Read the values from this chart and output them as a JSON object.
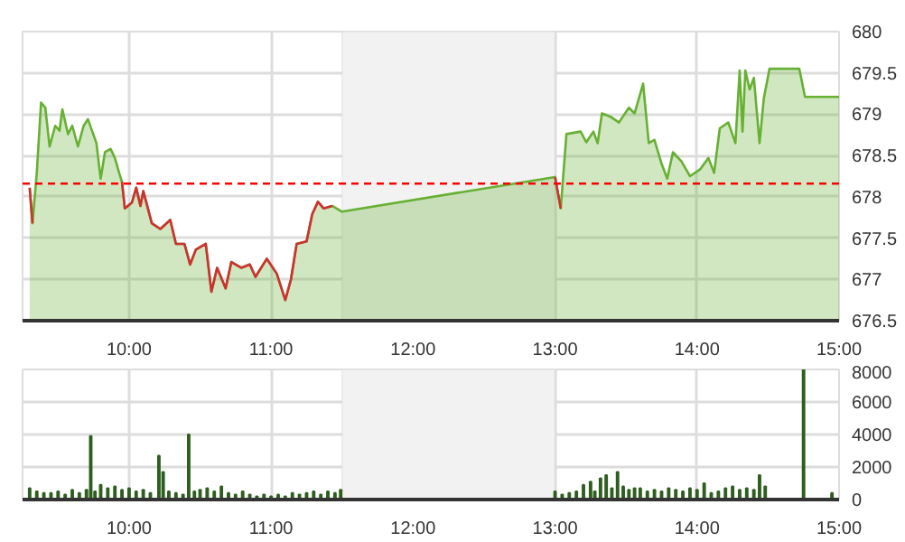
{
  "chart_data": [
    {
      "type": "area",
      "xlim": [
        9.25,
        15
      ],
      "ylim": [
        676.5,
        680
      ],
      "xticks": [
        {
          "value": 10,
          "label": "10:00"
        },
        {
          "value": 11,
          "label": "11:00"
        },
        {
          "value": 12,
          "label": "12:00"
        },
        {
          "value": 13,
          "label": "13:00"
        },
        {
          "value": 14,
          "label": "14:00"
        },
        {
          "value": 15,
          "label": "15:00"
        }
      ],
      "yticks": [
        676.5,
        677,
        677.5,
        678,
        678.5,
        679,
        679.5,
        680
      ],
      "grid": true,
      "x": [
        9.3,
        9.32,
        9.35,
        9.38,
        9.41,
        9.44,
        9.48,
        9.51,
        9.53,
        9.57,
        9.6,
        9.64,
        9.68,
        9.71,
        9.77,
        9.8,
        9.83,
        9.87,
        9.9,
        9.93,
        9.95,
        9.97,
        10.02,
        10.05,
        10.08,
        10.1,
        10.16,
        10.22,
        10.29,
        10.33,
        10.39,
        10.43,
        10.47,
        10.54,
        10.58,
        10.62,
        10.68,
        10.72,
        10.79,
        10.85,
        10.89,
        10.97,
        11.04,
        11.1,
        11.14,
        11.18,
        11.25,
        11.29,
        11.33,
        11.37,
        11.43,
        11.5,
        13.0,
        13.04,
        13.08,
        13.18,
        13.22,
        13.27,
        13.3,
        13.33,
        13.39,
        13.45,
        13.52,
        13.56,
        13.62,
        13.66,
        13.7,
        13.75,
        13.79,
        13.83,
        13.89,
        13.95,
        14.02,
        14.08,
        14.12,
        14.16,
        14.22,
        14.27,
        14.3,
        14.32,
        14.34,
        14.37,
        14.4,
        14.44,
        14.47,
        14.51,
        14.72,
        14.76,
        15.0
      ],
      "series": [
        {
          "type": "area",
          "color": "#66b032",
          "values": [
            678.11,
            677.68,
            678.29,
            679.14,
            679.08,
            678.61,
            678.86,
            678.8,
            679.06,
            678.76,
            678.86,
            678.61,
            678.86,
            678.94,
            678.65,
            678.22,
            678.54,
            678.58,
            678.47,
            678.29,
            678.18,
            677.86,
            677.93,
            678.11,
            677.89,
            678.07,
            677.68,
            677.61,
            677.72,
            677.43,
            677.43,
            677.18,
            677.36,
            677.43,
            676.85,
            677.14,
            676.89,
            677.21,
            677.14,
            677.18,
            677.03,
            677.25,
            677.07,
            676.75,
            677.0,
            677.43,
            677.46,
            677.79,
            677.94,
            677.86,
            677.89,
            677.82,
            678.24,
            677.86,
            678.76,
            678.79,
            678.66,
            678.79,
            678.65,
            679.01,
            678.97,
            678.9,
            679.08,
            679.01,
            679.37,
            678.65,
            678.69,
            678.4,
            678.22,
            678.54,
            678.43,
            678.25,
            678.33,
            678.47,
            678.29,
            678.83,
            678.9,
            678.65,
            679.53,
            678.79,
            679.53,
            679.3,
            679.44,
            678.65,
            679.19,
            679.55,
            679.55,
            679.21,
            679.21
          ]
        },
        {
          "type": "line",
          "color": "#d03030",
          "values": [
            678.11,
            677.68,
            null,
            null,
            null,
            null,
            null,
            null,
            null,
            null,
            null,
            null,
            null,
            null,
            null,
            null,
            null,
            null,
            null,
            null,
            678.18,
            677.86,
            677.93,
            678.11,
            677.89,
            678.07,
            677.68,
            677.61,
            677.72,
            677.43,
            677.43,
            677.18,
            677.36,
            677.43,
            676.85,
            677.14,
            676.89,
            677.21,
            677.14,
            677.18,
            677.03,
            677.25,
            677.07,
            676.75,
            677.0,
            677.43,
            677.46,
            677.79,
            677.94,
            677.86,
            677.89,
            null,
            678.24,
            677.86,
            null,
            null,
            null,
            null,
            null,
            null,
            null,
            null,
            null,
            null,
            null,
            null,
            null,
            null,
            null,
            null,
            null,
            null,
            null,
            null,
            null,
            null,
            null,
            null,
            null,
            null,
            null,
            null,
            null,
            null,
            null,
            null,
            null,
            null,
            null
          ]
        }
      ],
      "bands": [
        {
          "axis": "x",
          "from": 11.5,
          "to": 13,
          "color": "#f2f2f2"
        }
      ],
      "ref_lines": [
        {
          "axis": "y",
          "value": 678.16,
          "color": "#ff0000",
          "line_style": "dashed"
        }
      ]
    },
    {
      "type": "bar",
      "xlim": [
        9.25,
        15
      ],
      "ylim": [
        0,
        8000
      ],
      "xticks": [
        {
          "value": 10,
          "label": "10:00"
        },
        {
          "value": 11,
          "label": "11:00"
        },
        {
          "value": 12,
          "label": "12:00"
        },
        {
          "value": 13,
          "label": "13:00"
        },
        {
          "value": 14,
          "label": "14:00"
        },
        {
          "value": 15,
          "label": "15:00"
        }
      ],
      "yticks": [
        0,
        2000,
        4000,
        6000,
        8000
      ],
      "grid": true,
      "x": [
        9.3,
        9.35,
        9.4,
        9.45,
        9.5,
        9.55,
        9.6,
        9.65,
        9.7,
        9.73,
        9.76,
        9.8,
        9.85,
        9.9,
        9.95,
        10.0,
        10.05,
        10.1,
        10.15,
        10.21,
        10.24,
        10.28,
        10.33,
        10.38,
        10.42,
        10.46,
        10.5,
        10.55,
        10.6,
        10.65,
        10.7,
        10.75,
        10.8,
        10.85,
        10.9,
        10.95,
        11.0,
        11.05,
        11.1,
        11.15,
        11.2,
        11.25,
        11.3,
        11.35,
        11.4,
        11.45,
        11.49,
        13.0,
        13.05,
        13.1,
        13.15,
        13.2,
        13.25,
        13.28,
        13.32,
        13.36,
        13.4,
        13.44,
        13.48,
        13.52,
        13.56,
        13.6,
        13.65,
        13.7,
        13.75,
        13.8,
        13.85,
        13.9,
        13.95,
        14.0,
        14.05,
        14.1,
        14.15,
        14.2,
        14.25,
        14.3,
        14.35,
        14.4,
        14.44,
        14.48,
        14.75,
        14.95
      ],
      "series": [
        {
          "color": "#2d5e1e",
          "values": [
            700,
            500,
            400,
            400,
            500,
            300,
            600,
            400,
            600,
            3900,
            500,
            900,
            700,
            800,
            600,
            700,
            500,
            600,
            400,
            2700,
            1700,
            500,
            400,
            300,
            4000,
            500,
            600,
            700,
            500,
            800,
            400,
            300,
            500,
            300,
            200,
            300,
            200,
            300,
            200,
            400,
            300,
            400,
            500,
            300,
            500,
            400,
            600,
            500,
            300,
            400,
            500,
            900,
            1100,
            500,
            1300,
            1500,
            700,
            1700,
            800,
            600,
            700,
            700,
            500,
            600,
            500,
            700,
            600,
            500,
            700,
            600,
            1000,
            400,
            500,
            700,
            800,
            600,
            700,
            600,
            1500,
            800,
            8000,
            400
          ]
        }
      ],
      "bands": [
        {
          "axis": "x",
          "from": 11.5,
          "to": 13,
          "color": "#f2f2f2"
        }
      ]
    }
  ]
}
